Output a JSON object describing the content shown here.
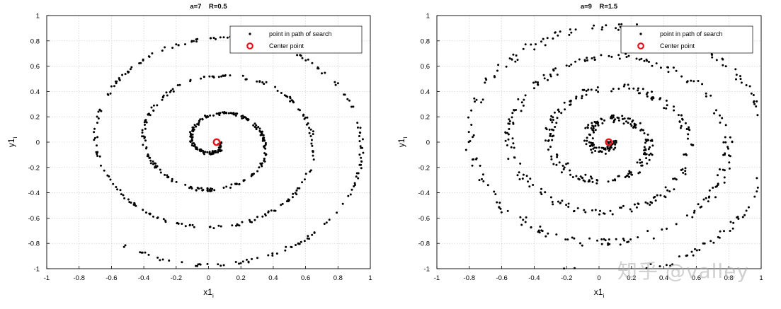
{
  "chart_data": [
    {
      "type": "scatter",
      "title": "a=7    R=0.5",
      "xlabel": "x1",
      "xlabel_sub": "i",
      "ylabel": "y1",
      "ylabel_sub": "i",
      "xlim": [
        -1,
        1
      ],
      "ylim": [
        -1,
        1
      ],
      "xticks": [
        "-1",
        "-0.8",
        "-0.6",
        "-0.4",
        "-0.2",
        "0",
        "0.2",
        "0.4",
        "0.6",
        "0.8",
        "1"
      ],
      "yticks": [
        "1",
        "0.8",
        "0.6",
        "0.4",
        "0.2",
        "0",
        "-0.2",
        "-0.4",
        "-0.6",
        "-0.8",
        "-1"
      ],
      "grid": true,
      "legend_position": "top-right",
      "center": [
        0.05,
        0.0
      ],
      "spiral": {
        "turns": 3.35,
        "r_max": 1.0,
        "noise": 0.012,
        "points": 620
      },
      "series": [
        {
          "name": "point in path of search",
          "marker": "dot",
          "color": "#000000"
        },
        {
          "name": "Center point",
          "marker": "ring",
          "color": "#e8141b"
        }
      ]
    },
    {
      "type": "scatter",
      "title": "a=9    R=1.5",
      "xlabel": "x1",
      "xlabel_sub": "i",
      "ylabel": "y1",
      "ylabel_sub": "i",
      "xlim": [
        -1,
        1
      ],
      "ylim": [
        -1,
        1
      ],
      "xticks": [
        "-1",
        "-0.8",
        "-0.6",
        "-0.4",
        "-0.2",
        "0",
        "0.2",
        "0.4",
        "0.6",
        "0.8",
        "1"
      ],
      "yticks": [
        "1",
        "0.8",
        "0.6",
        "0.4",
        "0.2",
        "0",
        "-0.2",
        "-0.4",
        "-0.6",
        "-0.8",
        "-1"
      ],
      "grid": true,
      "legend_position": "top-right",
      "center": [
        0.06,
        0.0
      ],
      "spiral": {
        "turns": 4.3,
        "r_max": 1.05,
        "noise": 0.03,
        "points": 760
      },
      "series": [
        {
          "name": "point in path of search",
          "marker": "dot",
          "color": "#000000"
        },
        {
          "name": "Center point",
          "marker": "ring",
          "color": "#e8141b"
        }
      ]
    }
  ],
  "watermark": "知乎 @valley"
}
